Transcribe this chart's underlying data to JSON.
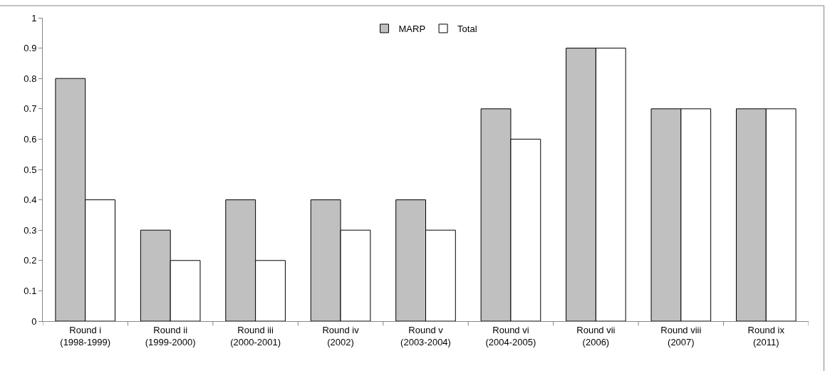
{
  "chart_data": {
    "type": "bar",
    "categories": [
      "Round i\n(1998-1999)",
      "Round ii\n(1999-2000)",
      "Round iii\n(2000-2001)",
      "Round iv\n(2002)",
      "Round v\n(2003-2004)",
      "Round vi\n(2004-2005)",
      "Round vii\n(2006)",
      "Round viii\n(2007)",
      "Round ix\n(2011)"
    ],
    "series": [
      {
        "name": "MARP",
        "color": "#c0c0c0",
        "values": [
          0.8,
          0.3,
          0.4,
          0.4,
          0.4,
          0.7,
          0.9,
          0.7,
          0.7
        ]
      },
      {
        "name": "Total",
        "color": "#ffffff",
        "values": [
          0.4,
          0.2,
          0.2,
          0.3,
          0.3,
          0.6,
          0.9,
          0.7,
          0.7
        ]
      }
    ],
    "ylim": [
      0,
      1
    ],
    "yticks": [
      0,
      0.1,
      0.2,
      0.3,
      0.4,
      0.5,
      0.6,
      0.7,
      0.8,
      0.9,
      1
    ],
    "grid": false,
    "legend": "top"
  }
}
